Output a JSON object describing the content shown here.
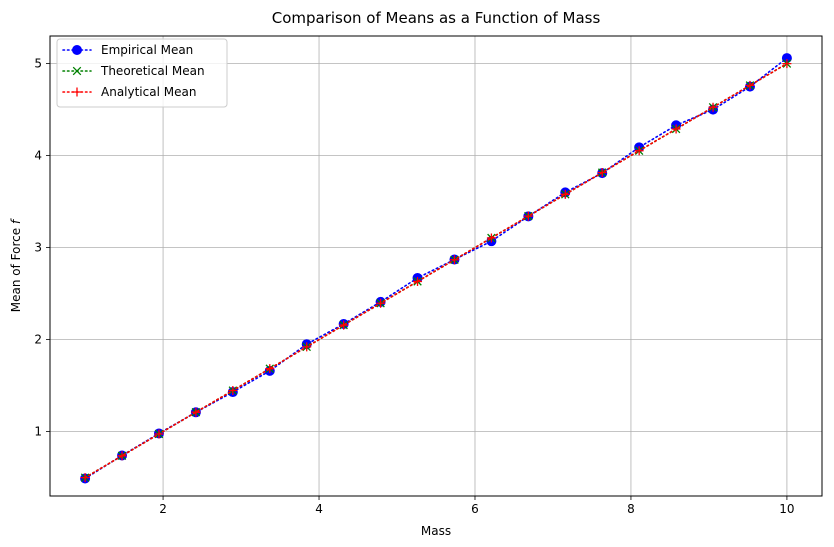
{
  "chart_data": {
    "type": "line",
    "title": "Comparison of Means as a Function of Mass",
    "xlabel": "Mass",
    "ylabel": "Mean of Force f",
    "xlim": [
      0.55,
      10.45
    ],
    "ylim": [
      0.3,
      5.3
    ],
    "xticks": [
      2,
      4,
      6,
      8,
      10
    ],
    "yticks": [
      1,
      2,
      3,
      4,
      5
    ],
    "grid": true,
    "legend_position": "upper-left",
    "x": [
      1.0,
      1.4737,
      1.9474,
      2.4211,
      2.8947,
      3.3684,
      3.8421,
      4.3158,
      4.7895,
      5.2632,
      5.7368,
      6.2105,
      6.6842,
      7.1579,
      7.6316,
      8.1053,
      8.5789,
      9.0526,
      9.5263,
      10.0
    ],
    "series": [
      {
        "name": "Empirical Mean",
        "color": "#0000ff",
        "marker": "circle",
        "values": [
          0.49,
          0.74,
          0.98,
          1.21,
          1.43,
          1.66,
          1.95,
          2.17,
          2.41,
          2.67,
          2.87,
          3.07,
          3.34,
          3.6,
          3.81,
          4.09,
          4.33,
          4.5,
          4.75,
          5.06
        ]
      },
      {
        "name": "Theoretical Mean",
        "color": "#008000",
        "marker": "x",
        "values": [
          0.5,
          0.737,
          0.974,
          1.211,
          1.447,
          1.684,
          1.921,
          2.158,
          2.395,
          2.632,
          2.868,
          3.105,
          3.342,
          3.579,
          3.816,
          4.053,
          4.289,
          4.526,
          4.763,
          5.0
        ]
      },
      {
        "name": "Analytical Mean",
        "color": "#ff0000",
        "marker": "plus",
        "values": [
          0.5,
          0.737,
          0.974,
          1.211,
          1.447,
          1.684,
          1.921,
          2.158,
          2.395,
          2.632,
          2.868,
          3.105,
          3.342,
          3.579,
          3.816,
          4.053,
          4.289,
          4.526,
          4.763,
          5.0
        ]
      }
    ]
  }
}
